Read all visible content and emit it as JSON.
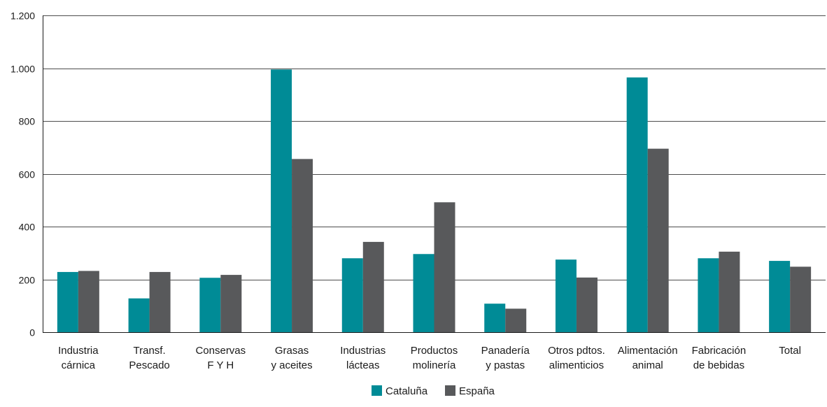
{
  "chart_data": {
    "type": "bar",
    "categories": [
      [
        "Industria",
        "cárnica"
      ],
      [
        "Transf.",
        "Pescado"
      ],
      [
        "Conservas",
        "F Y H"
      ],
      [
        "Grasas",
        "y aceites"
      ],
      [
        "Industrias",
        "lácteas"
      ],
      [
        "Productos",
        "molinería"
      ],
      [
        "Panadería",
        "y pastas"
      ],
      [
        "Otros pdtos.",
        "alimenticios"
      ],
      [
        "Alimentación",
        "animal"
      ],
      [
        "Fabricación",
        "de bebidas"
      ],
      [
        "Total"
      ]
    ],
    "series": [
      {
        "name": "Cataluña",
        "color": "#008b96",
        "values": [
          228,
          128,
          206,
          995,
          280,
          296,
          108,
          275,
          965,
          280,
          270
        ]
      },
      {
        "name": "España",
        "color": "#58595b",
        "values": [
          232,
          228,
          217,
          656,
          342,
          492,
          89,
          207,
          695,
          305,
          248
        ]
      }
    ],
    "ylim": [
      0,
      1200
    ],
    "yticks": [
      0,
      200,
      400,
      600,
      800,
      1000,
      1200
    ],
    "ytick_labels": [
      "0",
      "200",
      "400",
      "600",
      "800",
      "1.000",
      "1.200"
    ],
    "grid": true,
    "legend_position": "bottom-center"
  }
}
